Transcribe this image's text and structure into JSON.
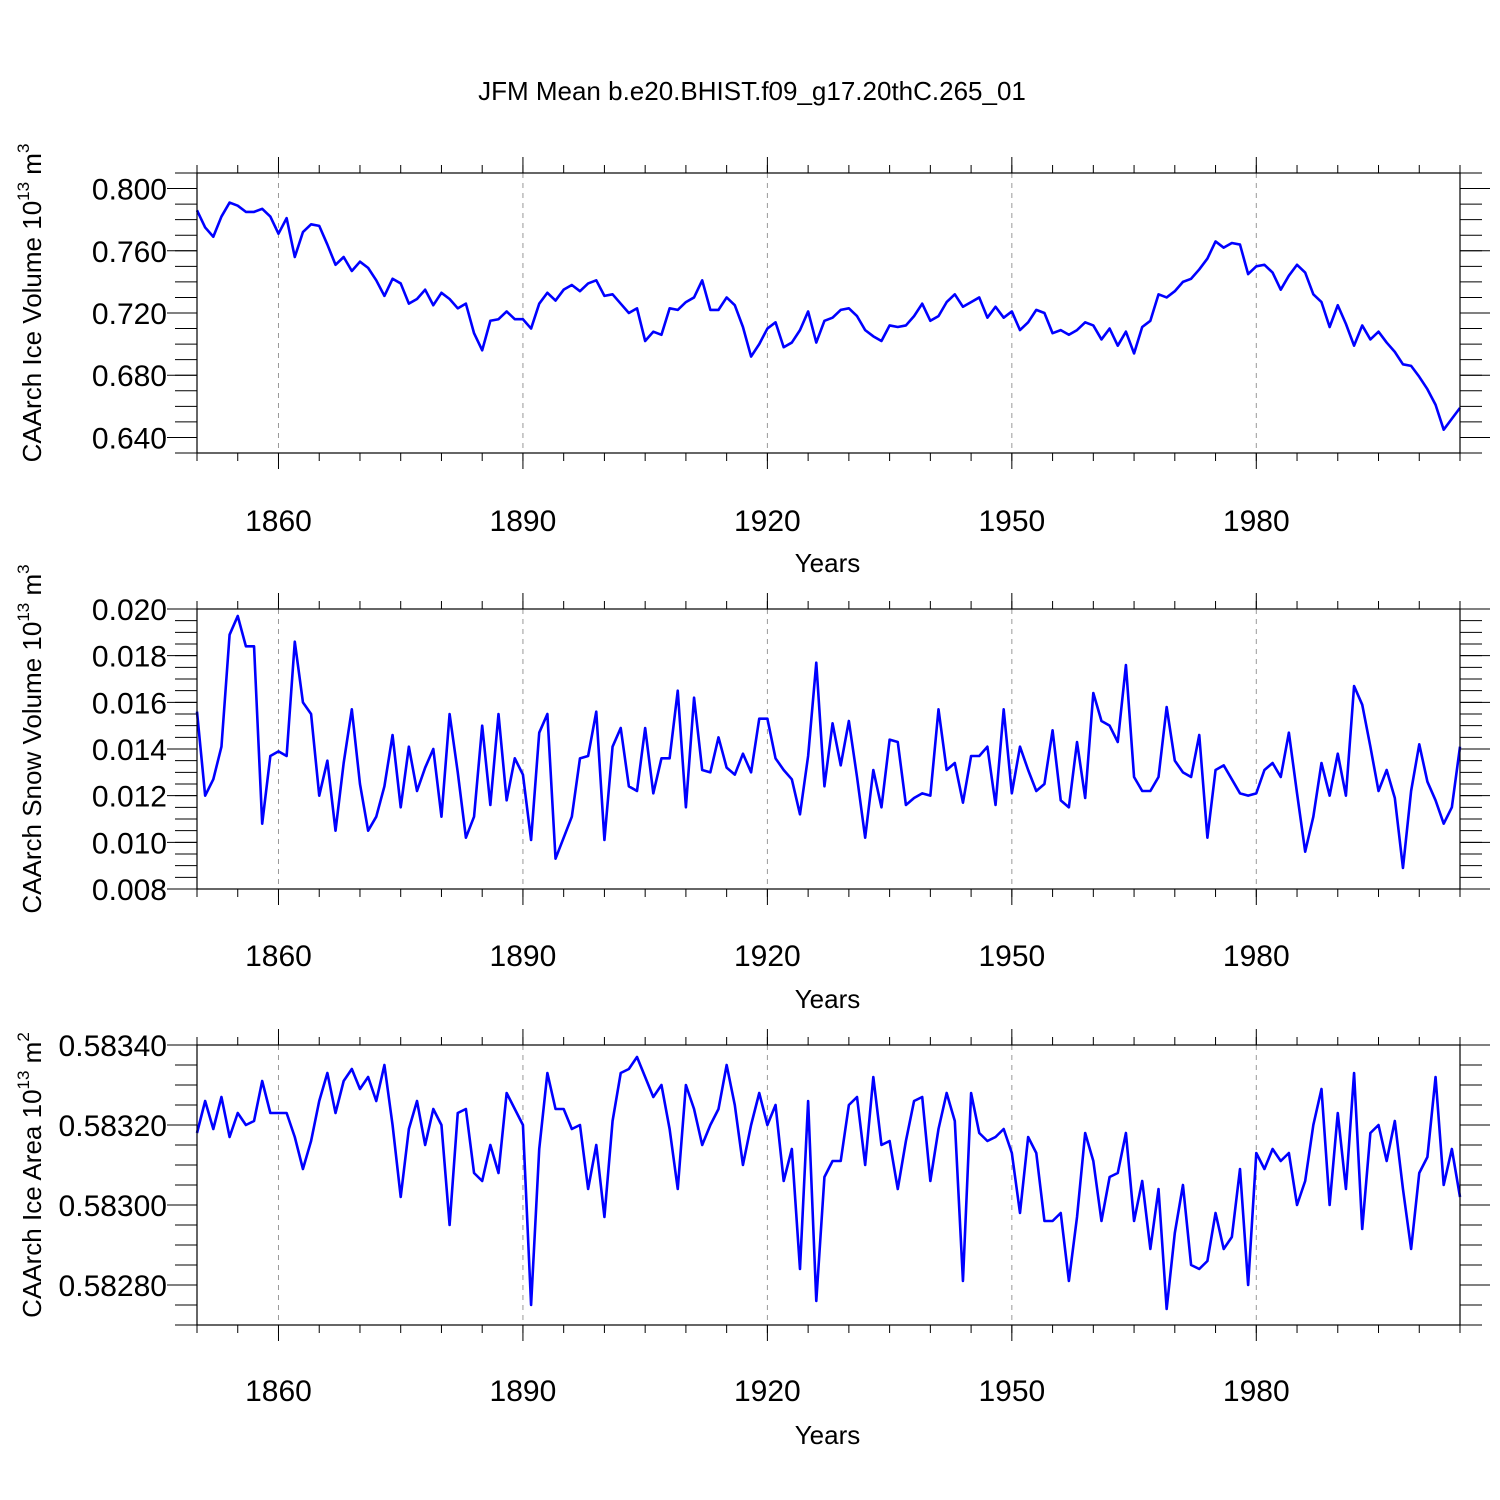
{
  "title": "JFM Mean b.e20.BHIST.f09_g17.20thC.265_01",
  "colors": {
    "series": "#0000ff",
    "axis": "#000000",
    "grid": "#999999",
    "background": "#ffffff"
  },
  "chart_data": [
    {
      "type": "line",
      "title": "JFM Mean b.e20.BHIST.f09_g17.20thC.265_01",
      "xlabel": "Years",
      "ylabel": {
        "main": "CAArch Ice Volume 10",
        "exp": "13",
        "unit": " m",
        "unit_exp": "3"
      },
      "xlim": [
        1850,
        2005
      ],
      "ylim": [
        0.63,
        0.81
      ],
      "xticks": [
        1860,
        1890,
        1920,
        1950,
        1980
      ],
      "xtick_labels": [
        "1860",
        "1890",
        "1920",
        "1950",
        "1980"
      ],
      "yticks": [
        0.64,
        0.68,
        0.72,
        0.76,
        0.8
      ],
      "ytick_labels": [
        "0.640",
        "0.680",
        "0.720",
        "0.760",
        "0.800"
      ],
      "grid": "vertical dashed at major x ticks",
      "x_start": 1850,
      "series": [
        {
          "name": "CAArch Ice Volume",
          "values": [
            0.786,
            0.775,
            0.769,
            0.782,
            0.791,
            0.789,
            0.785,
            0.785,
            0.787,
            0.782,
            0.771,
            0.781,
            0.756,
            0.772,
            0.777,
            0.776,
            0.764,
            0.751,
            0.756,
            0.747,
            0.753,
            0.749,
            0.741,
            0.731,
            0.742,
            0.739,
            0.726,
            0.729,
            0.735,
            0.725,
            0.733,
            0.729,
            0.723,
            0.726,
            0.707,
            0.696,
            0.715,
            0.716,
            0.721,
            0.716,
            0.716,
            0.71,
            0.726,
            0.733,
            0.728,
            0.735,
            0.738,
            0.734,
            0.739,
            0.741,
            0.731,
            0.732,
            0.726,
            0.72,
            0.723,
            0.702,
            0.708,
            0.706,
            0.723,
            0.722,
            0.727,
            0.73,
            0.741,
            0.722,
            0.722,
            0.73,
            0.725,
            0.711,
            0.692,
            0.7,
            0.71,
            0.714,
            0.698,
            0.701,
            0.709,
            0.721,
            0.701,
            0.715,
            0.717,
            0.722,
            0.723,
            0.718,
            0.709,
            0.705,
            0.702,
            0.712,
            0.711,
            0.712,
            0.718,
            0.726,
            0.715,
            0.718,
            0.727,
            0.732,
            0.724,
            0.727,
            0.73,
            0.717,
            0.724,
            0.717,
            0.721,
            0.709,
            0.714,
            0.722,
            0.72,
            0.707,
            0.709,
            0.706,
            0.709,
            0.714,
            0.712,
            0.703,
            0.71,
            0.699,
            0.708,
            0.694,
            0.711,
            0.715,
            0.732,
            0.73,
            0.734,
            0.74,
            0.742,
            0.748,
            0.755,
            0.766,
            0.762,
            0.765,
            0.764,
            0.745,
            0.75,
            0.751,
            0.746,
            0.735,
            0.744,
            0.751,
            0.746,
            0.732,
            0.727,
            0.711,
            0.725,
            0.713,
            0.699,
            0.712,
            0.703,
            0.708,
            0.701,
            0.695,
            0.687,
            0.686,
            0.679,
            0.671,
            0.661,
            0.645,
            0.652,
            0.659
          ]
        }
      ]
    },
    {
      "type": "line",
      "xlabel": "Years",
      "ylabel": {
        "main": "CAArch Snow Volume 10",
        "exp": "13",
        "unit": " m",
        "unit_exp": "3"
      },
      "xlim": [
        1850,
        2005
      ],
      "ylim": [
        0.008,
        0.02
      ],
      "xticks": [
        1860,
        1890,
        1920,
        1950,
        1980
      ],
      "xtick_labels": [
        "1860",
        "1890",
        "1920",
        "1950",
        "1980"
      ],
      "yticks": [
        0.008,
        0.01,
        0.012,
        0.014,
        0.016,
        0.018,
        0.02
      ],
      "ytick_labels": [
        "0.008",
        "0.010",
        "0.012",
        "0.014",
        "0.016",
        "0.018",
        "0.020"
      ],
      "grid": "vertical dashed at major x ticks",
      "x_start": 1850,
      "series": [
        {
          "name": "CAArch Snow Volume",
          "values": [
            0.0156,
            0.012,
            0.0127,
            0.0141,
            0.0189,
            0.0197,
            0.0184,
            0.0184,
            0.0108,
            0.0137,
            0.0139,
            0.0137,
            0.0186,
            0.016,
            0.0155,
            0.012,
            0.0135,
            0.0105,
            0.0134,
            0.0157,
            0.0125,
            0.0105,
            0.0111,
            0.0124,
            0.0146,
            0.0115,
            0.0141,
            0.0122,
            0.0132,
            0.014,
            0.0111,
            0.0155,
            0.013,
            0.0102,
            0.0111,
            0.015,
            0.0116,
            0.0155,
            0.0118,
            0.0136,
            0.0129,
            0.0101,
            0.0147,
            0.0155,
            0.0093,
            0.0102,
            0.0111,
            0.0136,
            0.0137,
            0.0156,
            0.0101,
            0.0141,
            0.0149,
            0.0124,
            0.0122,
            0.0149,
            0.0121,
            0.0136,
            0.0136,
            0.0165,
            0.0115,
            0.0162,
            0.0131,
            0.013,
            0.0145,
            0.0132,
            0.0129,
            0.0138,
            0.013,
            0.0153,
            0.0153,
            0.0136,
            0.0131,
            0.0127,
            0.0112,
            0.0137,
            0.0177,
            0.0124,
            0.0151,
            0.0133,
            0.0152,
            0.0128,
            0.0102,
            0.0131,
            0.0115,
            0.0144,
            0.0143,
            0.0116,
            0.0119,
            0.0121,
            0.012,
            0.0157,
            0.0131,
            0.0134,
            0.0117,
            0.0137,
            0.0137,
            0.0141,
            0.0116,
            0.0157,
            0.0121,
            0.0141,
            0.0131,
            0.0122,
            0.0125,
            0.0148,
            0.0118,
            0.0115,
            0.0143,
            0.0119,
            0.0164,
            0.0152,
            0.015,
            0.0143,
            0.0176,
            0.0128,
            0.0122,
            0.0122,
            0.0128,
            0.0158,
            0.0135,
            0.013,
            0.0128,
            0.0146,
            0.0102,
            0.0131,
            0.0133,
            0.0127,
            0.0121,
            0.012,
            0.0121,
            0.0131,
            0.0134,
            0.0128,
            0.0147,
            0.0121,
            0.0096,
            0.0111,
            0.0134,
            0.012,
            0.0138,
            0.012,
            0.0167,
            0.0159,
            0.0141,
            0.0122,
            0.0131,
            0.0119,
            0.0089,
            0.0122,
            0.0142,
            0.0126,
            0.0118,
            0.0108,
            0.0115,
            0.0141
          ]
        }
      ]
    },
    {
      "type": "line",
      "xlabel": "Years",
      "ylabel": {
        "main": "CAArch Ice Area 10",
        "exp": "13",
        "unit": " m",
        "unit_exp": "2"
      },
      "xlim": [
        1850,
        2005
      ],
      "ylim": [
        0.5827,
        0.5834
      ],
      "xticks": [
        1860,
        1890,
        1920,
        1950,
        1980
      ],
      "xtick_labels": [
        "1860",
        "1890",
        "1920",
        "1950",
        "1980"
      ],
      "yticks": [
        0.5828,
        0.583,
        0.5832,
        0.5834
      ],
      "ytick_labels": [
        "0.58280",
        "0.58300",
        "0.58320",
        "0.58340"
      ],
      "grid": "vertical dashed at major x ticks",
      "x_start": 1850,
      "series": [
        {
          "name": "CAArch Ice Area",
          "values": [
            0.58318,
            0.58326,
            0.58319,
            0.58327,
            0.58317,
            0.58323,
            0.5832,
            0.58321,
            0.58331,
            0.58323,
            0.58323,
            0.58323,
            0.58317,
            0.58309,
            0.58316,
            0.58326,
            0.58333,
            0.58323,
            0.58331,
            0.58334,
            0.58329,
            0.58332,
            0.58326,
            0.58335,
            0.5832,
            0.58302,
            0.58319,
            0.58326,
            0.58315,
            0.58324,
            0.5832,
            0.58295,
            0.58323,
            0.58324,
            0.58308,
            0.58306,
            0.58315,
            0.58308,
            0.58328,
            0.58324,
            0.5832,
            0.58275,
            0.58314,
            0.58333,
            0.58324,
            0.58324,
            0.58319,
            0.5832,
            0.58304,
            0.58315,
            0.58297,
            0.58321,
            0.58333,
            0.58334,
            0.58337,
            0.58332,
            0.58327,
            0.5833,
            0.58319,
            0.58304,
            0.5833,
            0.58324,
            0.58315,
            0.5832,
            0.58324,
            0.58335,
            0.58325,
            0.5831,
            0.5832,
            0.58328,
            0.5832,
            0.58325,
            0.58306,
            0.58314,
            0.58284,
            0.58326,
            0.58276,
            0.58307,
            0.58311,
            0.58311,
            0.58325,
            0.58327,
            0.5831,
            0.58332,
            0.58315,
            0.58316,
            0.58304,
            0.58316,
            0.58326,
            0.58327,
            0.58306,
            0.58319,
            0.58328,
            0.58321,
            0.58281,
            0.58328,
            0.58318,
            0.58316,
            0.58317,
            0.58319,
            0.58313,
            0.58298,
            0.58317,
            0.58313,
            0.58296,
            0.58296,
            0.58298,
            0.58281,
            0.58297,
            0.58318,
            0.58311,
            0.58296,
            0.58307,
            0.58308,
            0.58318,
            0.58296,
            0.58306,
            0.58289,
            0.58304,
            0.58274,
            0.58293,
            0.58305,
            0.58285,
            0.58284,
            0.58286,
            0.58298,
            0.58289,
            0.58292,
            0.58309,
            0.5828,
            0.58313,
            0.58309,
            0.58314,
            0.58311,
            0.58313,
            0.583,
            0.58306,
            0.5832,
            0.58329,
            0.583,
            0.58323,
            0.58304,
            0.58333,
            0.58294,
            0.58318,
            0.5832,
            0.58311,
            0.58321,
            0.58304,
            0.58289,
            0.58308,
            0.58312,
            0.58332,
            0.58305,
            0.58314,
            0.58302
          ]
        }
      ]
    }
  ]
}
